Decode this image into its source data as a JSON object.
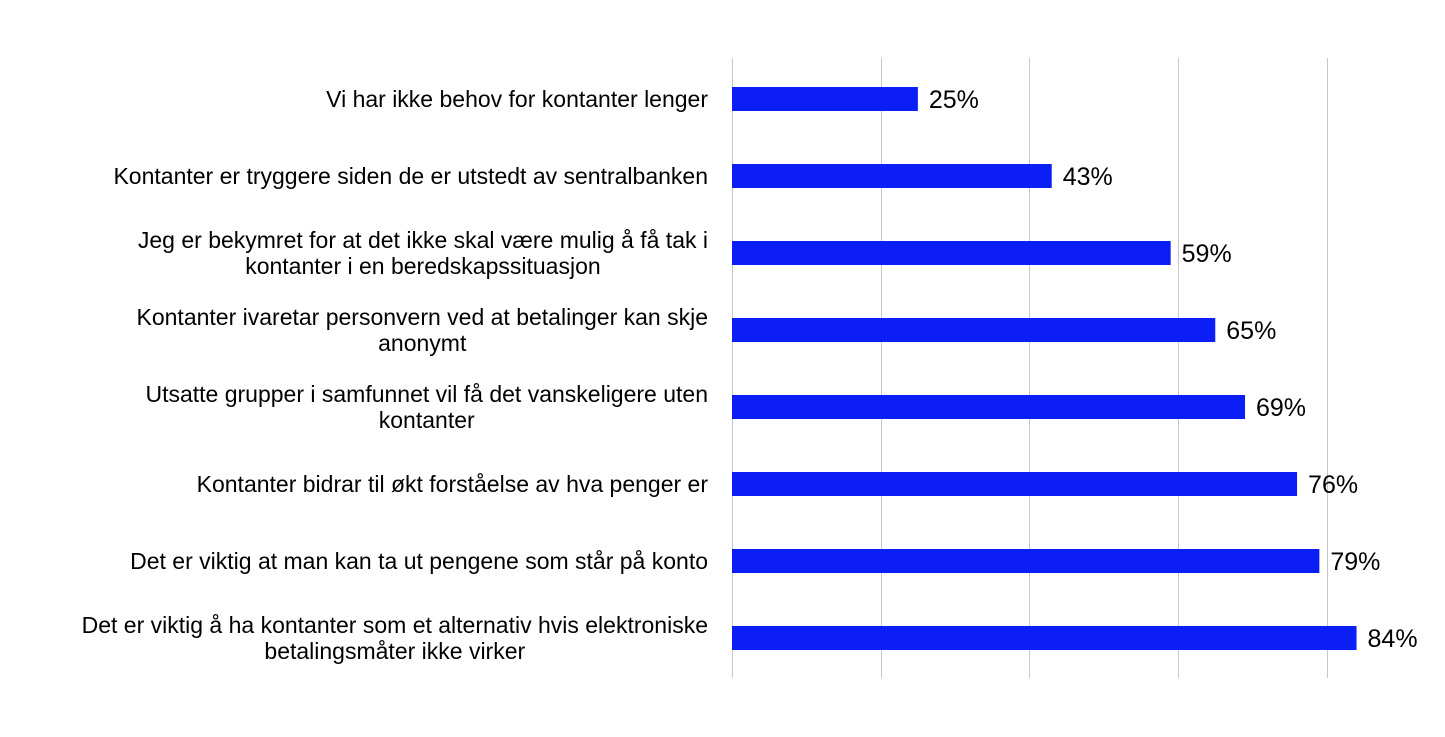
{
  "chart_data": {
    "type": "bar",
    "orientation": "horizontal",
    "categories": [
      "Vi har ikke behov for kontanter lenger",
      "Kontanter er tryggere siden de er utstedt av sentralbanken",
      "Jeg er bekymret for at det ikke skal være mulig å få tak i kontanter i en beredskapssituasjon",
      "Kontanter ivaretar personvern ved at betalinger kan skje anonymt",
      "Utsatte grupper i samfunnet vil få det vanskeligere uten kontanter",
      "Kontanter bidrar til økt forståelse av hva penger er",
      "Det er viktig at man kan ta ut pengene som står på konto",
      "Det er viktig å ha kontanter som et alternativ hvis elektroniske betalingsmåter ikke virker"
    ],
    "category_lines": [
      [
        "Vi har ikke behov for kontanter lenger"
      ],
      [
        "Kontanter er tryggere siden de er utstedt av sentralbanken"
      ],
      [
        "Jeg er bekymret for at det ikke skal være mulig å få tak i",
        "kontanter i en beredskapssituasjon"
      ],
      [
        "Kontanter ivaretar personvern ved at betalinger kan skje",
        "anonymt"
      ],
      [
        "Utsatte grupper i samfunnet vil få det vanskeligere uten",
        "kontanter"
      ],
      [
        "Kontanter bidrar til økt forståelse av hva penger er"
      ],
      [
        "Det er viktig at man kan ta ut pengene som står på konto"
      ],
      [
        "Det er viktig å ha kontanter som et alternativ hvis elektroniske",
        "betalingsmåter ikke virker"
      ]
    ],
    "values": [
      25,
      43,
      59,
      65,
      69,
      76,
      79,
      84
    ],
    "value_labels": [
      "25%",
      "43%",
      "59%",
      "65%",
      "69%",
      "76%",
      "79%",
      "84%"
    ],
    "xlim": [
      0,
      100
    ],
    "xgrid_values": [
      0,
      20,
      40,
      60,
      80,
      100
    ],
    "grid": true,
    "bar_color": "#0a1ef5",
    "title": "",
    "xlabel": "",
    "ylabel": ""
  }
}
